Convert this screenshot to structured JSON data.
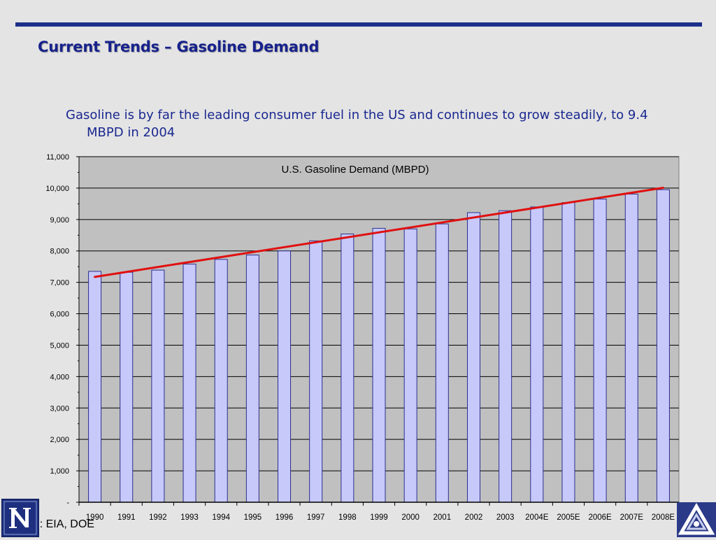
{
  "slide": {
    "title": "Current Trends – Gasoline Demand",
    "subtitle": "Gasoline is by far the leading consumer fuel in the US and continues to grow steadily, to 9.4 MBPD in 2004",
    "source": "Source:  EIA, DOE",
    "colors": {
      "accent_bar": "#1c2f8a",
      "title": "#17228c",
      "bar_fill": "#c7c9fb",
      "bar_edge": "#2b2f8c",
      "trend": "#e01010"
    },
    "logos": {
      "left": "nevada-n-logo-icon",
      "right": "triangle-emblem-icon"
    }
  },
  "chart_data": {
    "type": "bar",
    "title": "U.S. Gasoline Demand (MBPD)",
    "xlabel": "",
    "ylabel": "",
    "categories": [
      "1990",
      "1991",
      "1992",
      "1993",
      "1994",
      "1995",
      "1996",
      "1997",
      "1998",
      "1999",
      "2000",
      "2001",
      "2002",
      "2003",
      "2004E",
      "2005E",
      "2006E",
      "2007E",
      "2008E"
    ],
    "values": [
      7350,
      7320,
      7390,
      7580,
      7730,
      7870,
      8000,
      8320,
      8540,
      8720,
      8700,
      8860,
      9220,
      9280,
      9400,
      9540,
      9650,
      9810,
      9950
    ],
    "ylim": [
      0,
      11000
    ],
    "yticks": [
      0,
      1000,
      2000,
      3000,
      4000,
      5000,
      6000,
      7000,
      8000,
      9000,
      10000,
      11000
    ],
    "ytick_labels": [
      "-",
      "1,000",
      "2,000",
      "3,000",
      "4,000",
      "5,000",
      "6,000",
      "7,000",
      "8,000",
      "9,000",
      "10,000",
      "11,000"
    ],
    "grid": true,
    "legend": "none",
    "trendline": {
      "type": "linear",
      "color": "#e01010"
    }
  }
}
